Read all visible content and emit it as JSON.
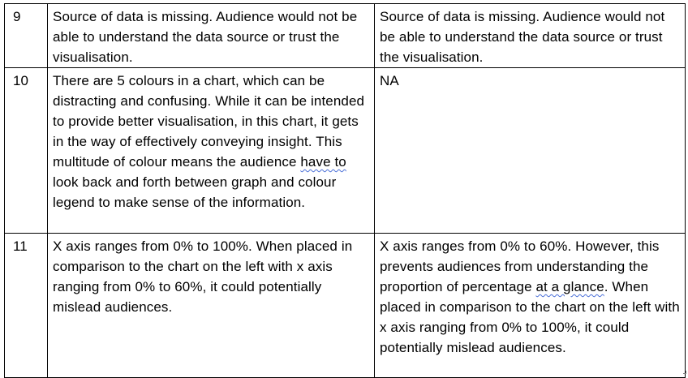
{
  "table": {
    "rows": [
      {
        "num": "9",
        "left": [
          "Source of data is missing. Audience would not be able to understand the data source or trust the visualisation."
        ],
        "right": [
          "Source of data is missing. Audience would not be able to understand the data source or trust the visualisation."
        ]
      },
      {
        "num": "10",
        "left": [
          "There are 5 colours in a chart, which can be distracting and confusing. While it can be intended to provide better visualisation, in this chart, it gets in the way of effectively conveying insight. This multitude of colour means the audience ",
          "have to",
          " look back and forth between graph and colour legend to make sense of the information."
        ],
        "right": [
          "NA"
        ]
      },
      {
        "num": "11",
        "left": [
          "X axis ranges from 0% to 100%. When placed in comparison to the chart on the left with x axis ranging from 0% to 60%, it could potentially mislead audiences."
        ],
        "right": [
          "X axis ranges from 0% to 60%. However, this prevents audiences from understanding the proportion of percentage ",
          "at a glance",
          ". When placed in comparison to the chart on the left with x axis ranging from 0% to 100%, it could potentially mislead audiences."
        ]
      }
    ]
  }
}
